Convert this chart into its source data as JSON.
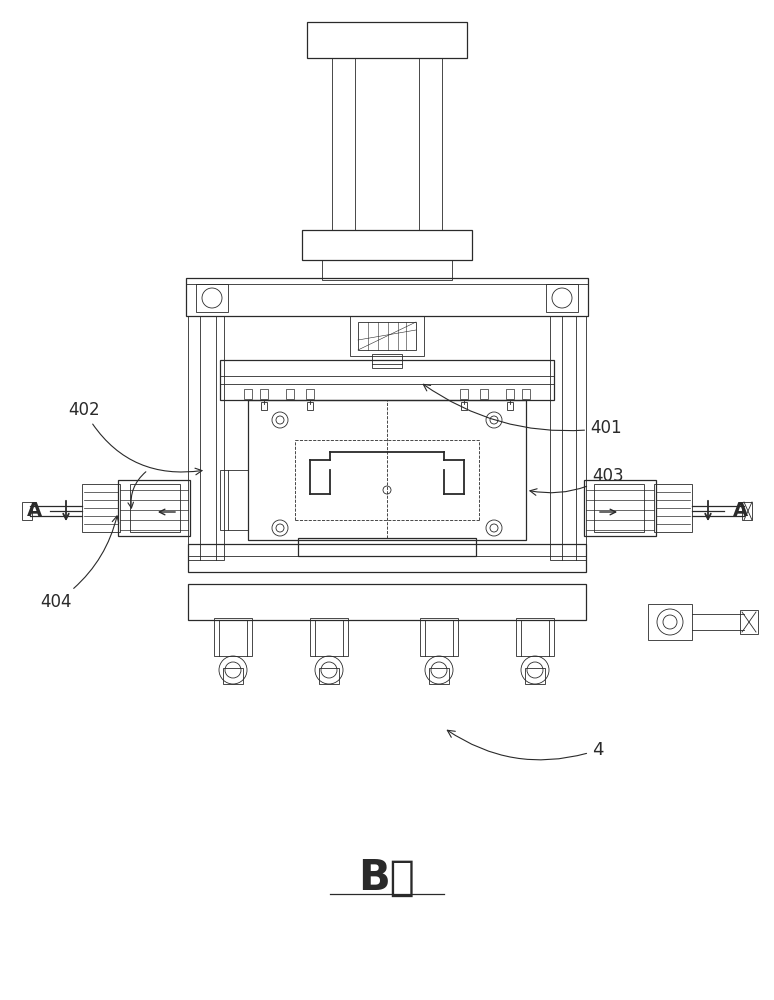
{
  "title": "B向",
  "bg_color": "#ffffff",
  "line_color": "#2a2a2a",
  "lw_thin": 0.6,
  "lw_med": 0.9,
  "lw_thick": 1.3
}
